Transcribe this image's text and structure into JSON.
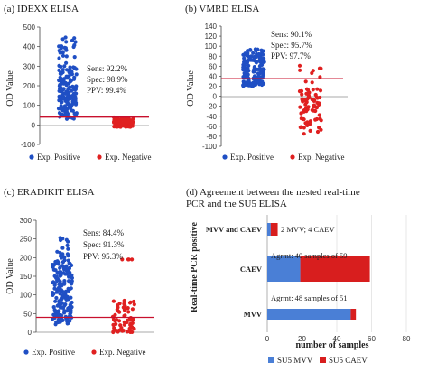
{
  "colors": {
    "positive": "#1f4fc4",
    "negative": "#e02020",
    "cutoff": "#c8102e",
    "su5_mvv": "#4a7fd6",
    "su5_caev": "#d81e1e"
  },
  "panels": {
    "a": {
      "title": "(a) IDEXX ELISA",
      "ylabel": "OD Value",
      "yticks": [
        "500",
        "400",
        "300",
        "200",
        "100",
        "0",
        "-100"
      ],
      "ylim": [
        -100,
        500
      ],
      "cutoff": 40,
      "stats": [
        "Sens: 92.2%",
        "Spec: 98.9%",
        "PPV:  99.4%"
      ],
      "legend": [
        "Exp. Positive",
        "Exp. Negative"
      ]
    },
    "b": {
      "title": "(b) VMRD ELISA",
      "ylabel": "OD Value",
      "yticks": [
        "140",
        "120",
        "100",
        "80",
        "60",
        "40",
        "20",
        "0",
        "-20",
        "-40",
        "-60",
        "-80",
        "-100"
      ],
      "ylim": [
        -100,
        140
      ],
      "cutoff": 35,
      "stats": [
        "Sens: 90.1%",
        "Spec: 95.7%",
        "PPV:  97.7%"
      ],
      "legend": [
        "Exp. Positive",
        "Exp. Negative"
      ]
    },
    "c": {
      "title": "(c) ERADIKIT ELISA",
      "ylabel": "OD Value",
      "yticks": [
        "300",
        "250",
        "200",
        "150",
        "100",
        "50",
        "0"
      ],
      "ylim": [
        0,
        300
      ],
      "cutoff": 40,
      "stats": [
        "Sens: 84.4%",
        "Spec: 91.3%",
        "PPV:  95.3%"
      ],
      "legend": [
        "Exp. Positive",
        "Exp. Negative"
      ]
    },
    "d": {
      "title_lines": [
        "(d) Agreement between the nested real-time",
        "PCR and the SU5 ELISA"
      ],
      "ylabel": "Real-time PCR positive",
      "xlabel": "number of samples",
      "xticks": [
        "0",
        "20",
        "40",
        "60",
        "80"
      ],
      "legend": [
        "SU5 MVV",
        "SU5 CAEV"
      ]
    }
  },
  "chart_data": [
    {
      "type": "scatter",
      "title": "(a) IDEXX ELISA",
      "ylabel": "OD Value",
      "ylim": [
        -100,
        500
      ],
      "series": [
        {
          "name": "Exp. Positive",
          "range": [
            30,
            455
          ],
          "n": 180
        },
        {
          "name": "Exp. Negative",
          "range": [
            -10,
            40
          ],
          "n": 90
        }
      ],
      "cutoff": 40,
      "annotations": [
        "Sens: 92.2%",
        "Spec: 98.9%",
        "PPV: 99.4%"
      ]
    },
    {
      "type": "scatter",
      "title": "(b) VMRD ELISA",
      "ylabel": "OD Value",
      "ylim": [
        -100,
        140
      ],
      "series": [
        {
          "name": "Exp. Positive",
          "range": [
            20,
            95
          ],
          "n": 150
        },
        {
          "name": "Exp. Negative",
          "range": [
            -80,
            68
          ],
          "n": 80
        }
      ],
      "cutoff": 35,
      "annotations": [
        "Sens: 90.1%",
        "Spec: 95.7%",
        "PPV: 97.7%"
      ]
    },
    {
      "type": "scatter",
      "title": "(c) ERADIKIT ELISA",
      "ylabel": "OD Value",
      "ylim": [
        0,
        300
      ],
      "series": [
        {
          "name": "Exp. Positive",
          "range": [
            20,
            255
          ],
          "n": 180
        },
        {
          "name": "Exp. Negative",
          "range": [
            0,
            195
          ],
          "n": 70
        }
      ],
      "cutoff": 40,
      "annotations": [
        "Sens: 84.4%",
        "Spec: 91.3%",
        "PPV: 95.3%"
      ]
    },
    {
      "type": "bar",
      "orientation": "horizontal",
      "stacked": true,
      "title": "(d) Agreement between the nested real-time PCR and the SU5 ELISA",
      "xlabel": "number of samples",
      "ylabel": "Real-time PCR positive",
      "xlim": [
        0,
        80
      ],
      "categories": [
        "MVV",
        "CAEV",
        "MVV and CAEV"
      ],
      "series": [
        {
          "name": "SU5 MVV",
          "values": [
            48,
            19,
            2
          ]
        },
        {
          "name": "SU5 CAEV",
          "values": [
            3,
            40,
            4
          ]
        }
      ],
      "bar_labels": [
        "Agrmt: 48 samples of 51",
        "Agrmt: 40 samples of 59",
        "2 MVV; 4 CAEV"
      ]
    }
  ]
}
